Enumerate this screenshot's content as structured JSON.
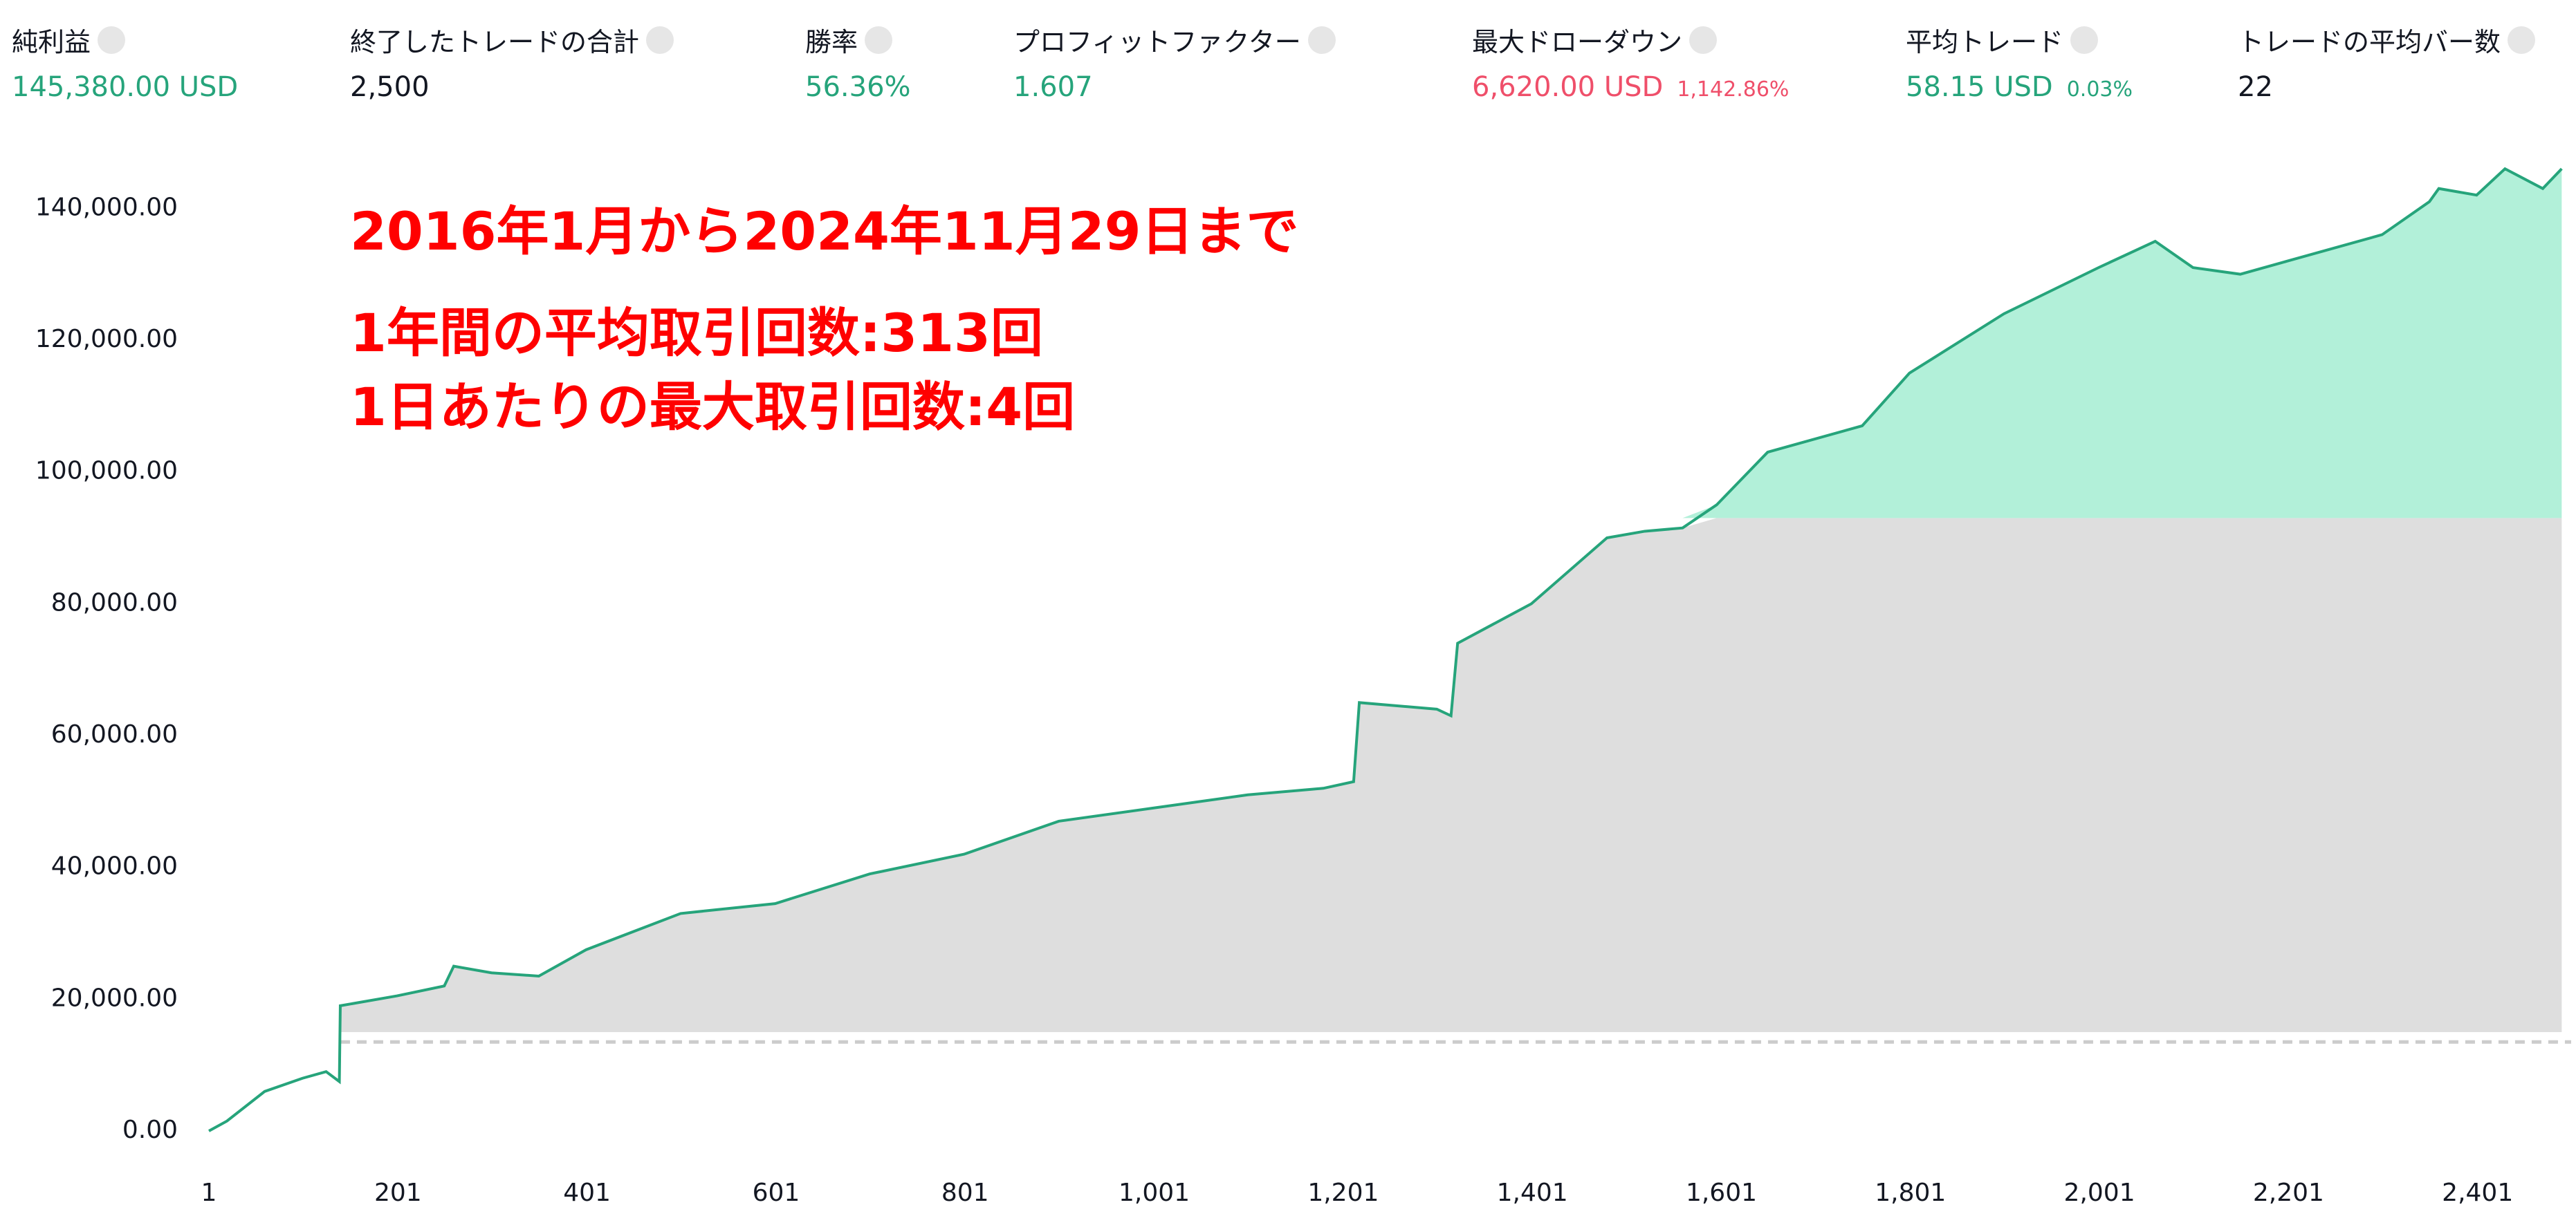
{
  "metrics": [
    {
      "label": "純利益",
      "value": "145,380.00 USD",
      "color": "#26a47b"
    },
    {
      "label": "終了したトレードの合計",
      "value": "2,500",
      "color": "#131722"
    },
    {
      "label": "勝率",
      "value": "56.36%",
      "color": "#26a47b"
    },
    {
      "label": "プロフィットファクター",
      "value": "1.607",
      "color": "#26a47b"
    },
    {
      "label": "最大ドローダウン",
      "value": "6,620.00 USD",
      "sub": "1,142.86%",
      "color": "#ef4f6a"
    },
    {
      "label": "平均トレード",
      "value": "58.15 USD",
      "sub": "0.03%",
      "color": "#26a47b"
    },
    {
      "label": "トレードの平均バー数",
      "value": "22",
      "color": "#131722"
    }
  ],
  "chart_data": {
    "type": "area",
    "annotations": [
      "2016年1月から2024年11月29日まで",
      "1年間の平均取引回数:313回",
      "1日あたりの最大取引回数:4回"
    ],
    "x": [
      1,
      20,
      60,
      100,
      125,
      139,
      140,
      200,
      250,
      260,
      300,
      350,
      400,
      500,
      600,
      700,
      800,
      900,
      1000,
      1100,
      1180,
      1212,
      1218,
      1300,
      1315,
      1322,
      1400,
      1480,
      1520,
      1560,
      1596,
      1650,
      1750,
      1800,
      1900,
      2000,
      2060,
      2100,
      2150,
      2200,
      2300,
      2350,
      2360,
      2400,
      2430,
      2470,
      2490
    ],
    "values": [
      0,
      1500,
      6000,
      8000,
      9000,
      7500,
      19000,
      20500,
      22000,
      25000,
      24000,
      23500,
      27500,
      33000,
      34500,
      39000,
      42000,
      47000,
      49000,
      51000,
      52000,
      53000,
      65000,
      64000,
      63000,
      74000,
      80000,
      90000,
      91000,
      91500,
      95000,
      103000,
      107000,
      115000,
      124000,
      131000,
      135000,
      131000,
      130000,
      132000,
      136000,
      141000,
      143000,
      142000,
      146000,
      143000,
      146000
    ],
    "color": "#26a47b",
    "fill": {
      "start_x": 140,
      "base": 15000,
      "split": 93000,
      "below_color": "#dedede",
      "above_color": "#b2f0d9",
      "dashed_level": 13500
    },
    "xlim": [
      1,
      2500
    ],
    "ylim": [
      0,
      150000
    ],
    "xticks": [
      1,
      201,
      401,
      601,
      801,
      {
        "value": 1001,
        "label": "1,001"
      },
      {
        "value": 1201,
        "label": "1,201"
      },
      {
        "value": 1401,
        "label": "1,401"
      },
      {
        "value": 1601,
        "label": "1,601"
      },
      {
        "value": 1801,
        "label": "1,801"
      },
      {
        "value": 2001,
        "label": "2,001"
      },
      {
        "value": 2201,
        "label": "2,201"
      },
      {
        "value": 2401,
        "label": "2,401"
      }
    ],
    "yticks": [
      {
        "value": 0,
        "label": "0.00"
      },
      {
        "value": 20000,
        "label": "20,000.00"
      },
      {
        "value": 40000,
        "label": "40,000.00"
      },
      {
        "value": 60000,
        "label": "60,000.00"
      },
      {
        "value": 80000,
        "label": "80,000.00"
      },
      {
        "value": 100000,
        "label": "100,000.00"
      },
      {
        "value": 120000,
        "label": "120,000.00"
      },
      {
        "value": 140000,
        "label": "140,000.00"
      }
    ]
  }
}
